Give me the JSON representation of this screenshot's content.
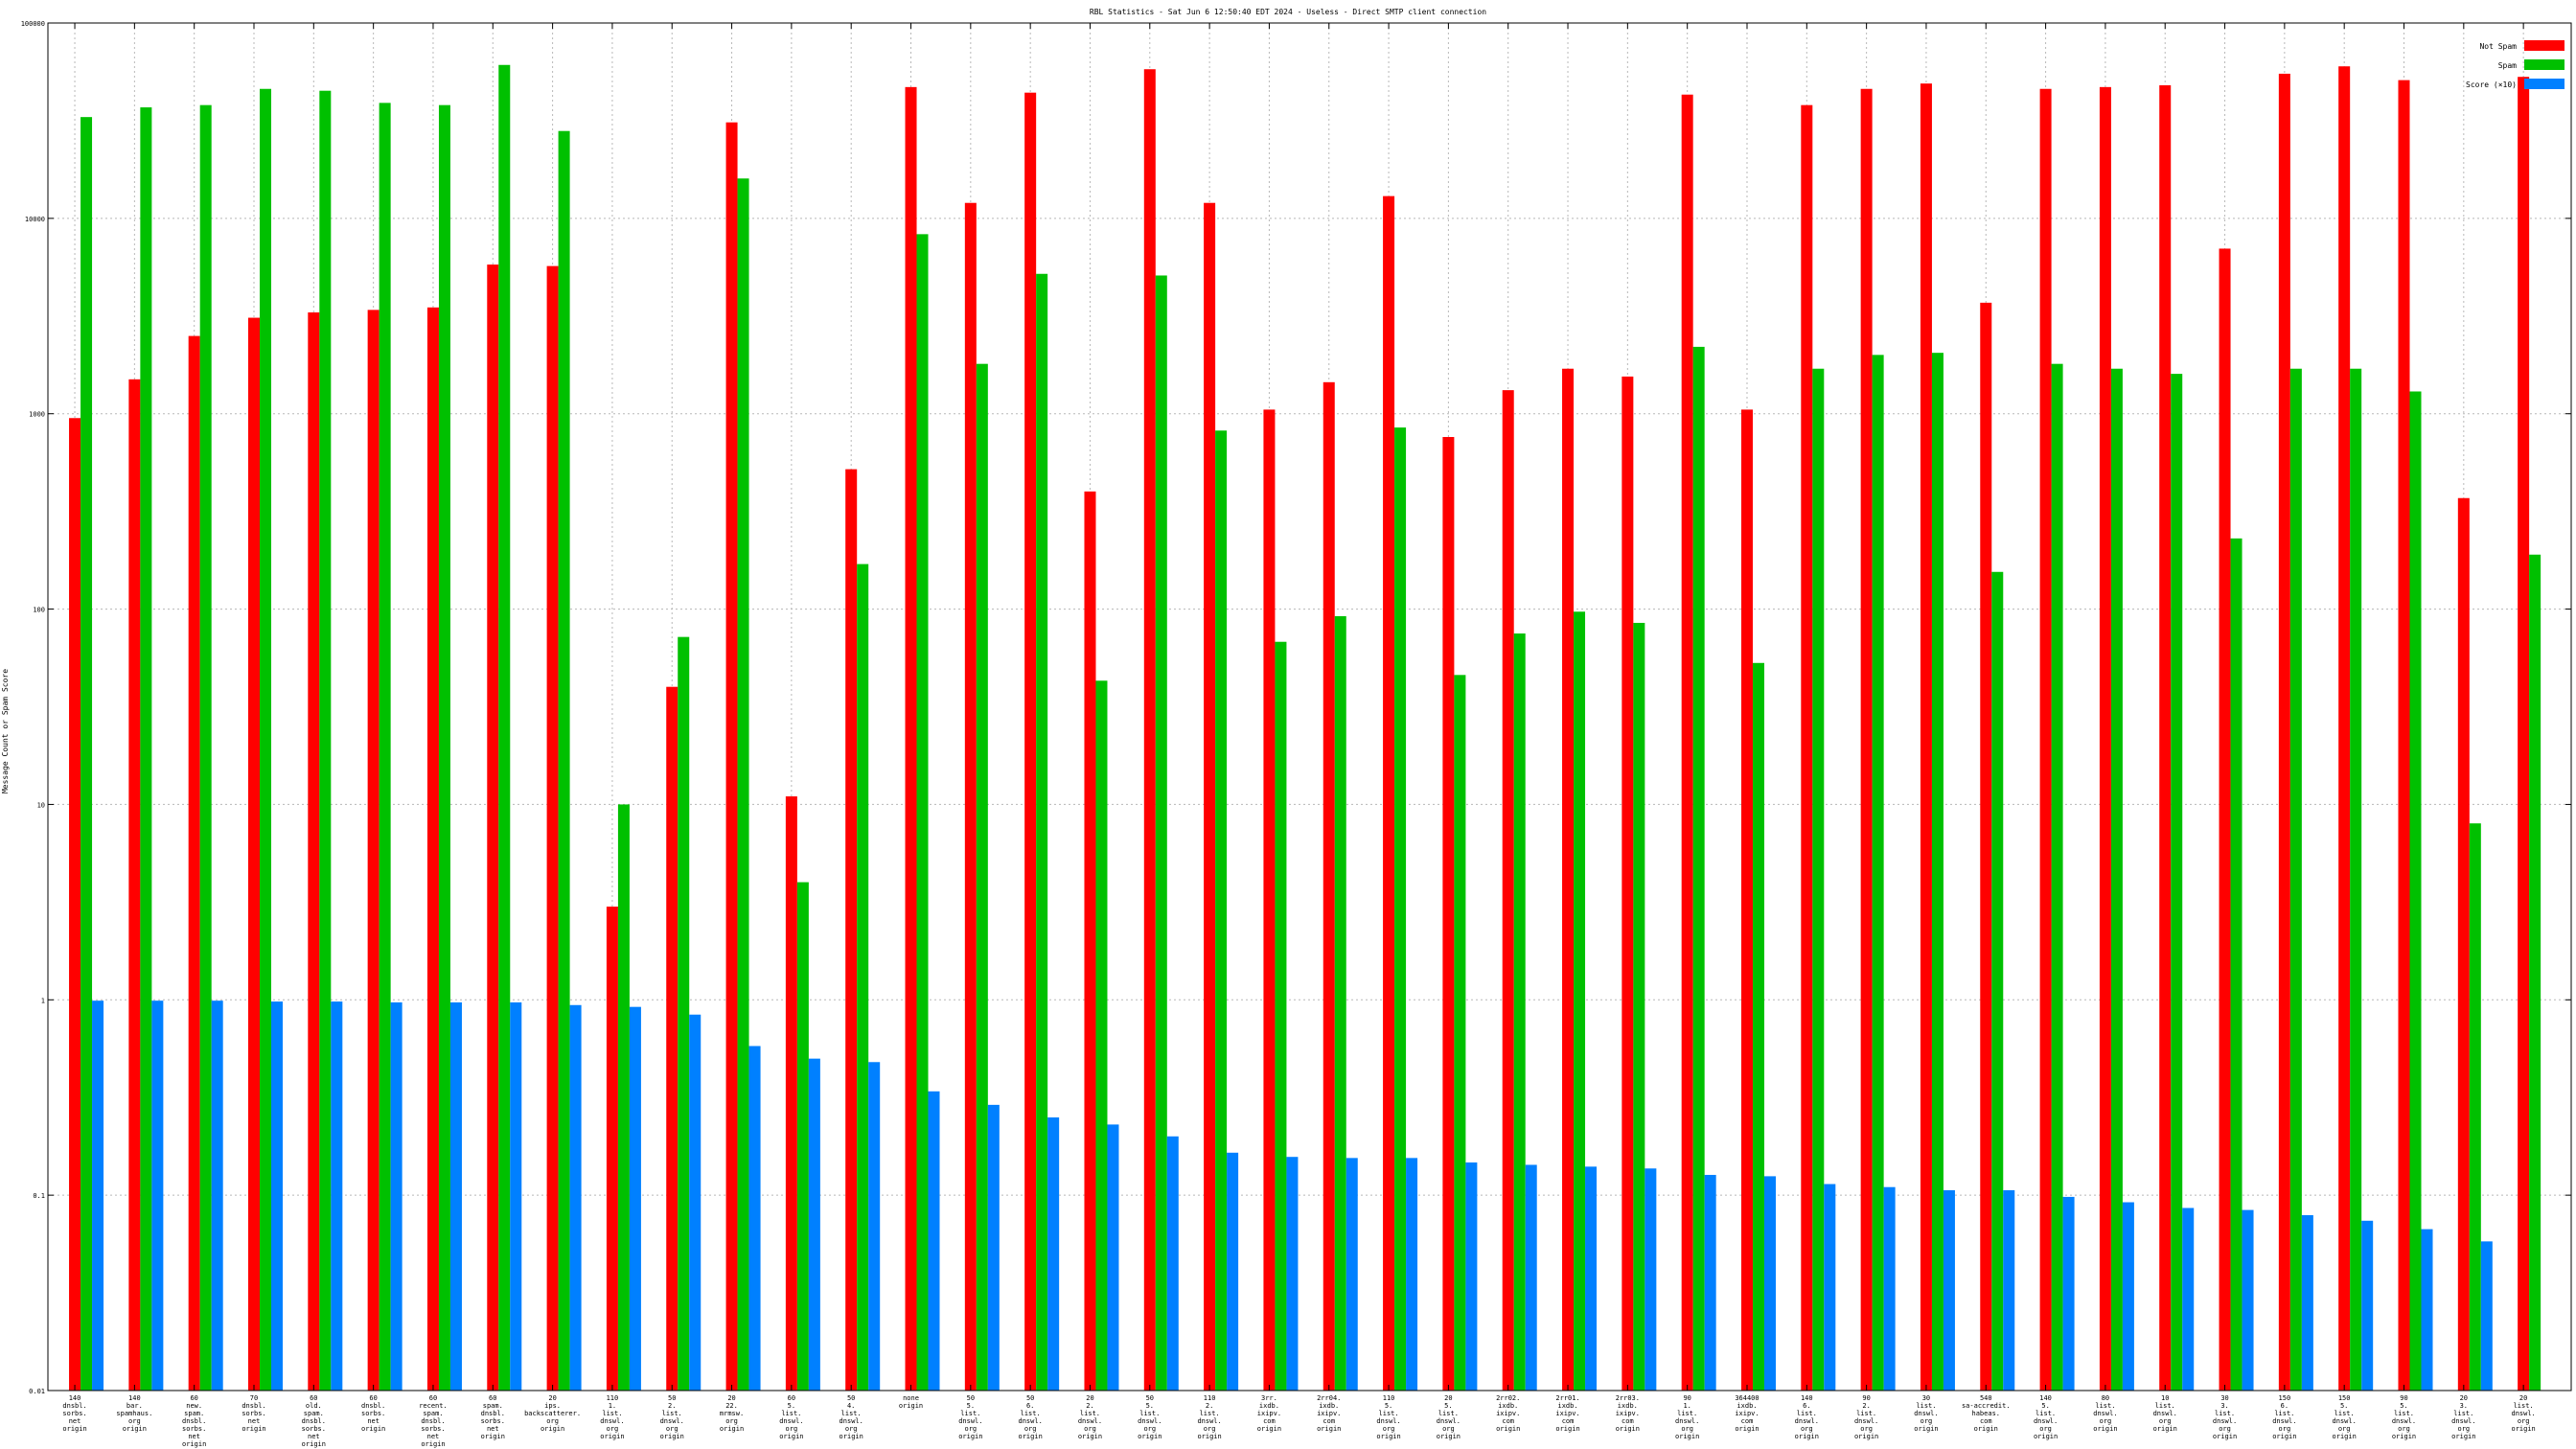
{
  "chart_data": {
    "type": "bar",
    "title": "RBL Statistics - Sat Jun  6 12:50:40 EDT 2024 - Useless - Direct SMTP client connection",
    "xlabel": "",
    "ylabel": "Message Count or Spam Score",
    "yscale": "log",
    "ylim": [
      0.01,
      100000
    ],
    "yticks": [
      "0.01",
      "0.1",
      "1",
      "10",
      "100",
      "1000",
      "10000",
      "100000"
    ],
    "grid": true,
    "legend_position": "top-right",
    "categories": [
      [
        "140",
        "dnsbl.",
        "sorbs.",
        "net",
        "origin"
      ],
      [
        "140",
        "bar.",
        "spamhaus.",
        "org",
        "origin"
      ],
      [
        "60",
        "new.",
        "spam.",
        "dnsbl.",
        "sorbs.",
        "net",
        "origin"
      ],
      [
        "70",
        "dnsbl.",
        "sorbs.",
        "net",
        "origin"
      ],
      [
        "60",
        "old.",
        "spam.",
        "dnsbl.",
        "sorbs.",
        "net",
        "origin"
      ],
      [
        "60",
        "dnsbl.",
        "sorbs.",
        "net",
        "origin"
      ],
      [
        "60",
        "recent.",
        "spam.",
        "dnsbl.",
        "sorbs.",
        "net",
        "origin"
      ],
      [
        "60",
        "spam.",
        "dnsbl.",
        "sorbs.",
        "net",
        "origin"
      ],
      [
        "20",
        "ips.",
        "backscatterer.",
        "org",
        "origin"
      ],
      [
        "110",
        "1.",
        "list.",
        "dnswl.",
        "org",
        "origin"
      ],
      [
        "50",
        "2.",
        "list.",
        "dnswl.",
        "org",
        "origin"
      ],
      [
        "20",
        "22.",
        "mrmsw.",
        "org",
        "origin"
      ],
      [
        "60",
        "5.",
        "list.",
        "dnswl.",
        "org",
        "origin"
      ],
      [
        "50",
        "4.",
        "list.",
        "dnswl.",
        "org",
        "origin"
      ],
      [
        "none",
        "origin"
      ],
      [
        "50",
        "5.",
        "list.",
        "dnswl.",
        "org",
        "origin"
      ],
      [
        "50",
        "6.",
        "list.",
        "dnswl.",
        "org",
        "origin"
      ],
      [
        "20",
        "2.",
        "list.",
        "dnswl.",
        "org",
        "origin"
      ],
      [
        "50",
        "5.",
        "list.",
        "dnswl.",
        "org",
        "origin"
      ],
      [
        "110",
        "2.",
        "list.",
        "dnswl.",
        "org",
        "origin"
      ],
      [
        "3rr.",
        "ixdb.",
        "ixipv.",
        "com",
        "origin"
      ],
      [
        "2rr04.",
        "ixdb.",
        "ixipv.",
        "com",
        "origin"
      ],
      [
        "110",
        "5.",
        "list.",
        "dnswl.",
        "org",
        "origin"
      ],
      [
        "20",
        "5.",
        "list.",
        "dnswl.",
        "org",
        "origin"
      ],
      [
        "2rr02.",
        "ixdb.",
        "ixipv.",
        "com",
        "origin"
      ],
      [
        "2rr01.",
        "ixdb.",
        "ixipv.",
        "com",
        "origin"
      ],
      [
        "2rr03.",
        "ixdb.",
        "ixipv.",
        "com",
        "origin"
      ],
      [
        "90",
        "1.",
        "list.",
        "dnswl.",
        "org",
        "origin"
      ],
      [
        "364400",
        "ixdb.",
        "ixipv.",
        "com",
        "origin"
      ],
      [
        "140",
        "6.",
        "list.",
        "dnswl.",
        "org",
        "origin"
      ],
      [
        "90",
        "2.",
        "list.",
        "dnswl.",
        "org",
        "origin"
      ],
      [
        "30",
        "list.",
        "dnswl.",
        "org",
        "origin"
      ],
      [
        "540",
        "sa-accredit.",
        "habeas.",
        "com",
        "origin"
      ],
      [
        "140",
        "5.",
        "list.",
        "dnswl.",
        "org",
        "origin"
      ],
      [
        "80",
        "list.",
        "dnswl.",
        "org",
        "origin"
      ],
      [
        "10",
        "list.",
        "dnswl.",
        "org",
        "origin"
      ],
      [
        "30",
        "3.",
        "list.",
        "dnswl.",
        "org",
        "origin"
      ],
      [
        "150",
        "6.",
        "list.",
        "dnswl.",
        "org",
        "origin"
      ],
      [
        "150",
        "5.",
        "list.",
        "dnswl.",
        "org",
        "origin"
      ],
      [
        "90",
        "5.",
        "list.",
        "dnswl.",
        "org",
        "origin"
      ],
      [
        "20",
        "3.",
        "list.",
        "dnswl.",
        "org",
        "origin"
      ],
      [
        "20",
        "list.",
        "dnswl.",
        "org",
        "origin"
      ]
    ],
    "series": [
      {
        "name": "Not Spam",
        "color": "#ff0000",
        "values": [
          950,
          1500,
          2500,
          3100,
          3300,
          3400,
          3500,
          5800,
          5700,
          3,
          40,
          31000,
          11,
          520,
          47000,
          12000,
          44000,
          400,
          58000,
          12000,
          1050,
          1450,
          13000,
          760,
          1320,
          1700,
          1550,
          43000,
          1050,
          38000,
          46000,
          49000,
          3700,
          46000,
          47000,
          48000,
          7000,
          55000,
          60000,
          51000,
          370,
          53000
        ]
      },
      {
        "name": "Spam",
        "color": "#00c000",
        "values": [
          33000,
          37000,
          38000,
          46000,
          45000,
          39000,
          38000,
          61000,
          28000,
          10,
          72,
          16000,
          4,
          170,
          8300,
          1800,
          5200,
          43,
          5100,
          820,
          68,
          92,
          850,
          46,
          75,
          97,
          85,
          2200,
          53,
          1700,
          2000,
          2050,
          155,
          1800,
          1700,
          1600,
          230,
          1700,
          1700,
          1300,
          8,
          190
        ]
      },
      {
        "name": "Score (×10)",
        "color": "#0080ff",
        "values": [
          0.99,
          0.99,
          0.99,
          0.98,
          0.98,
          0.97,
          0.97,
          0.97,
          0.94,
          0.92,
          0.84,
          0.58,
          0.5,
          0.48,
          0.34,
          0.29,
          0.25,
          0.23,
          0.2,
          0.165,
          0.157,
          0.155,
          0.155,
          0.147,
          0.143,
          0.14,
          0.137,
          0.127,
          0.125,
          0.114,
          0.11,
          0.106,
          0.106,
          0.098,
          0.092,
          0.086,
          0.084,
          0.079,
          0.074,
          0.067,
          0.058,
          null
        ]
      }
    ]
  }
}
